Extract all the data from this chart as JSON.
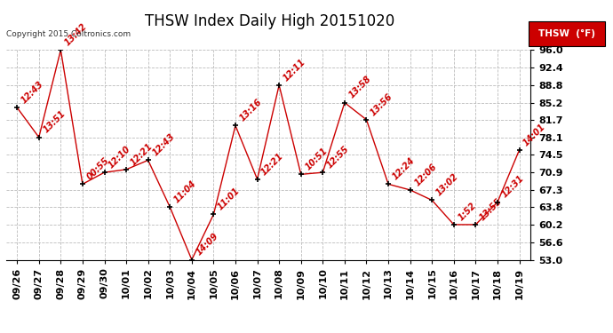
{
  "title": "THSW Index Daily High 20151020",
  "copyright": "Copyright 2015 Coltronics.com",
  "legend_label": "THSW  (°F)",
  "x_labels": [
    "09/26",
    "09/27",
    "09/28",
    "09/29",
    "09/30",
    "10/01",
    "10/02",
    "10/03",
    "10/04",
    "10/05",
    "10/06",
    "10/07",
    "10/08",
    "10/09",
    "10/10",
    "10/11",
    "10/12",
    "10/13",
    "10/14",
    "10/15",
    "10/16",
    "10/17",
    "10/18",
    "10/19"
  ],
  "y_values": [
    84.2,
    78.1,
    96.0,
    68.5,
    70.9,
    71.5,
    73.4,
    63.8,
    53.0,
    62.3,
    80.5,
    69.5,
    88.8,
    70.5,
    70.9,
    85.2,
    81.7,
    68.5,
    67.3,
    65.2,
    60.2,
    60.2,
    64.8,
    75.5
  ],
  "point_labels": [
    "12:43",
    "13:51",
    "13:42",
    "00:55",
    "12:10",
    "12:21",
    "12:43",
    "11:04",
    "14:09",
    "11:01",
    "13:16",
    "12:21",
    "12:11",
    "10:51",
    "12:55",
    "13:58",
    "13:56",
    "12:24",
    "12:06",
    "13:02",
    "1:52",
    "13:55",
    "12:31",
    "14:01"
  ],
  "ylim": [
    53.0,
    96.0
  ],
  "yticks": [
    53.0,
    56.6,
    60.2,
    63.8,
    67.3,
    70.9,
    74.5,
    78.1,
    81.7,
    85.2,
    88.8,
    92.4,
    96.0
  ],
  "line_color": "#cc0000",
  "marker_color": "#000000",
  "label_color": "#cc0000",
  "grid_color": "#bbbbbb",
  "bg_color": "#ffffff",
  "title_fontsize": 12,
  "label_fontsize": 7,
  "tick_fontsize": 8,
  "legend_bg": "#cc0000",
  "legend_text_color": "#ffffff"
}
